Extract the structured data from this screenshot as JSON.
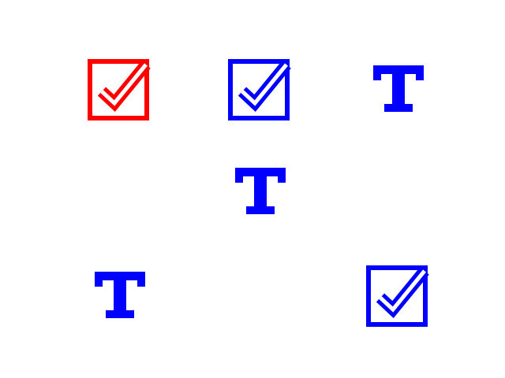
{
  "colors": {
    "red": "#ff0000",
    "blue": "#0000ff",
    "background": "#ffffff"
  },
  "grid": {
    "rows": 3,
    "cols": 3,
    "cells": [
      {
        "row": 0,
        "col": 0,
        "icon": "checkbox-checked-icon",
        "color": "#ff0000"
      },
      {
        "row": 0,
        "col": 1,
        "icon": "checkbox-checked-icon",
        "color": "#0000ff"
      },
      {
        "row": 0,
        "col": 2,
        "icon": "text-t-icon",
        "color": "#0000ff"
      },
      {
        "row": 1,
        "col": 1,
        "icon": "text-t-icon",
        "color": "#0000ff"
      },
      {
        "row": 2,
        "col": 0,
        "icon": "text-t-icon",
        "color": "#0000ff"
      },
      {
        "row": 2,
        "col": 2,
        "icon": "checkbox-checked-icon",
        "color": "#0000ff"
      }
    ]
  }
}
